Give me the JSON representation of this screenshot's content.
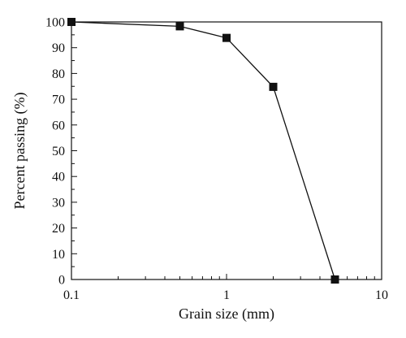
{
  "chart_data": {
    "type": "line",
    "xscale": "log",
    "xlabel": "Grain size (mm)",
    "ylabel": "Percent passing (%)",
    "xlim": [
      0.1,
      10
    ],
    "ylim": [
      0,
      100
    ],
    "xticks": [
      0.1,
      1,
      10
    ],
    "xtick_labels": [
      "0.1",
      "1",
      "10"
    ],
    "yticks": [
      0,
      10,
      20,
      30,
      40,
      50,
      60,
      70,
      80,
      90,
      100
    ],
    "ytick_labels": [
      "0",
      "10",
      "20",
      "30",
      "40",
      "50",
      "60",
      "70",
      "80",
      "90",
      "100"
    ],
    "grid": false,
    "legend": "none",
    "series": [
      {
        "x": [
          0.1,
          0.5,
          1,
          2,
          5
        ],
        "y": [
          100,
          98.3,
          93.8,
          74.8,
          0
        ],
        "marker": "square",
        "color": "#111111"
      }
    ]
  }
}
